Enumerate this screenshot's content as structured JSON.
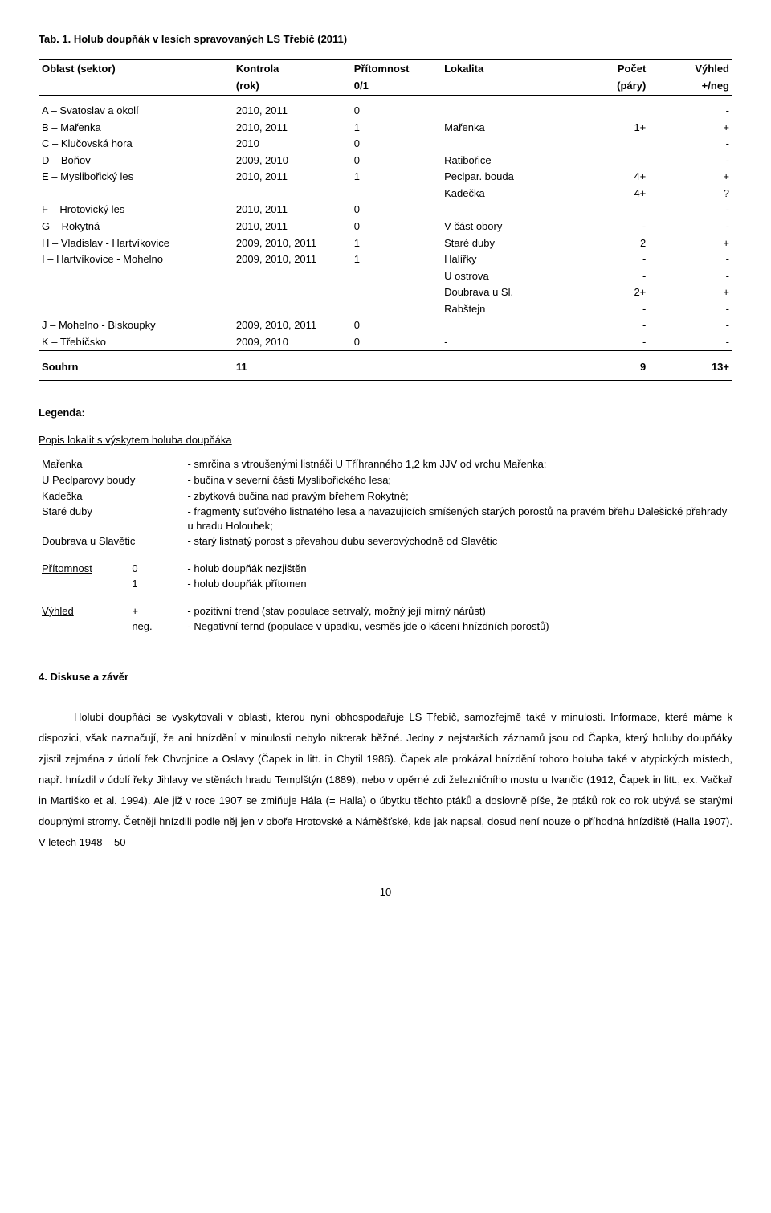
{
  "table_title": "Tab. 1. Holub doupňák v lesích spravovaných LS Třebíč (2011)",
  "headers": {
    "c0a": "Oblast (sektor)",
    "c0b": "",
    "c1a": "Kontrola",
    "c1b": "(rok)",
    "c2a": "Přítomnost",
    "c2b": "0/1",
    "c3a": "Lokalita",
    "c3b": "",
    "c4a": "Počet",
    "c4b": "(páry)",
    "c5a": "Výhled",
    "c5b": "+/neg"
  },
  "rows": [
    {
      "c0": "A – Svatoslav a okolí",
      "c1": "2010, 2011",
      "c2": "0",
      "c3": "",
      "c4": "",
      "c5": "-"
    },
    {
      "c0": "B – Mařenka",
      "c1": "2010, 2011",
      "c2": "1",
      "c3": "Mařenka",
      "c4": "1+",
      "c5": "+"
    },
    {
      "c0": "C – Klučovská hora",
      "c1": "2010",
      "c2": "0",
      "c3": "",
      "c4": "",
      "c5": "-"
    },
    {
      "c0": "D – Boňov",
      "c1": "2009, 2010",
      "c2": "0",
      "c3": "Ratibořice",
      "c4": "",
      "c5": "-"
    },
    {
      "c0": "E – Myslibořický les",
      "c1": "2010, 2011",
      "c2": "1",
      "c3": "Peclpar. bouda",
      "c4": "4+",
      "c5": "+"
    },
    {
      "c0": "",
      "c1": "",
      "c2": "",
      "c3": "Kadečka",
      "c4": "4+",
      "c5": "?"
    },
    {
      "c0": "F – Hrotovický les",
      "c1": "2010, 2011",
      "c2": "0",
      "c3": "",
      "c4": "",
      "c5": "-"
    },
    {
      "c0": "G – Rokytná",
      "c1": "2010, 2011",
      "c2": "0",
      "c3": "V část obory",
      "c4": "-",
      "c5": "-"
    },
    {
      "c0": "H – Vladislav - Hartvíkovice",
      "c1": "2009, 2010, 2011",
      "c2": "1",
      "c3": "Staré duby",
      "c4": "2",
      "c5": "+"
    },
    {
      "c0": "I – Hartvíkovice - Mohelno",
      "c1": "2009, 2010, 2011",
      "c2": "1",
      "c3": "Halířky",
      "c4": "-",
      "c5": "-"
    },
    {
      "c0": "",
      "c1": "",
      "c2": "",
      "c3": "U ostrova",
      "c4": "-",
      "c5": "-"
    },
    {
      "c0": "",
      "c1": "",
      "c2": "",
      "c3": "Doubrava u Sl.",
      "c4": "2+",
      "c5": "+"
    },
    {
      "c0": "",
      "c1": "",
      "c2": "",
      "c3": "Rabštejn",
      "c4": "-",
      "c5": "-"
    },
    {
      "c0": "J – Mohelno - Biskoupky",
      "c1": "2009, 2010, 2011",
      "c2": "0",
      "c3": "",
      "c4": "-",
      "c5": "-"
    },
    {
      "c0": "K – Třebíčsko",
      "c1": "2009, 2010",
      "c2": "0",
      "c3": "-",
      "c4": "-",
      "c5": "-"
    }
  ],
  "summary": {
    "label": "Souhrn",
    "c1": "11",
    "c4": "9",
    "c5": "13+"
  },
  "legend": {
    "title": "Legenda:",
    "section1_title": "Popis lokalit s výskytem holuba doupňáka",
    "items1": [
      {
        "k": "Mařenka",
        "v": "- smrčina s vtroušenými listnáči U Tříhranného 1,2 km JJV od vrchu Mařenka;"
      },
      {
        "k": "U Peclparovy boudy",
        "v": "- bučina v severní části Myslibořického lesa;"
      },
      {
        "k": "Kadečka",
        "v": "- zbytková bučina nad pravým břehem Rokytné;"
      },
      {
        "k": "Staré duby",
        "v": "- fragmenty suťového listnatého lesa a navazujících smíšených starých porostů na pravém břehu Dalešické přehrady u hradu Holoubek;"
      },
      {
        "k": "Doubrava u Slavětic",
        "v": "- starý listnatý porost s převahou dubu severovýchodně od Slavětic"
      }
    ],
    "items2": [
      {
        "k": "Přítomnost",
        "s": "0",
        "v": "- holub doupňák nezjištěn"
      },
      {
        "k": "",
        "s": "1",
        "v": "- holub doupňák přítomen"
      }
    ],
    "items3": [
      {
        "k": "Výhled",
        "s": "+",
        "v": "- pozitivní trend (stav populace setrvalý, možný její mírný nárůst)"
      },
      {
        "k": "",
        "s": "neg.",
        "v": "- Negativní ternd (populace v úpadku, vesměs jde o kácení hnízdních porostů)"
      }
    ]
  },
  "discussion": {
    "title": "4. Diskuse a závěr",
    "text": "Holubi doupňáci se vyskytovali v oblasti, kterou nyní obhospodařuje LS Třebíč, samozřejmě také v minulosti. Informace, které máme k dispozici, však naznačují, že ani hnízdění v minulosti nebylo nikterak běžné. Jedny z nejstarších záznamů jsou od Čapka, který holuby doupňáky zjistil zejména z údolí řek Chvojnice a Oslavy (Čapek in litt. in Chytil 1986). Čapek ale prokázal hnízdění tohoto holuba také v atypických místech, např. hnízdil v údolí řeky Jihlavy ve stěnách hradu Templštýn (1889), nebo v opěrné zdi železničního mostu u Ivančic (1912, Čapek in litt., ex. Vačkař in Martiško et al. 1994). Ale již v roce 1907 se zmiňuje Hála (= Halla) o úbytku těchto ptáků a doslovně píše, že ptáků rok co rok ubývá se starými doupnými stromy. Četněji hnízdili podle něj jen v oboře Hrotovské a Náměšťské, kde jak napsal, dosud není nouze o příhodná hnízdiště (Halla 1907). V letech 1948 – 50"
  },
  "page_number": "10"
}
